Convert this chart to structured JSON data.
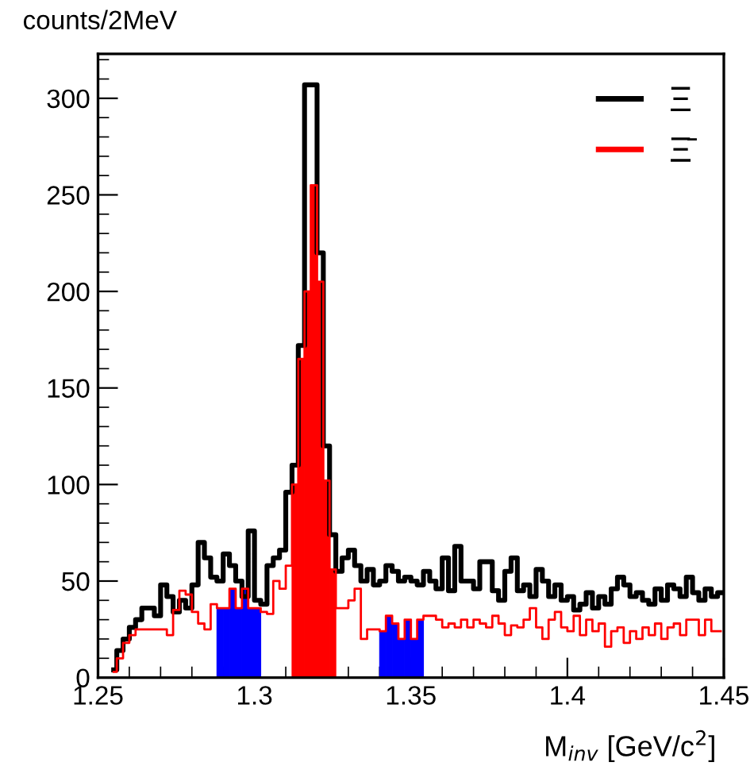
{
  "chart_data": {
    "type": "histogram",
    "ylabel": "counts/2MeV",
    "xlabel": "M$_{inv}$ [GeV/c$^{2}$]",
    "bins": [
      1.25,
      1.252,
      1.254,
      1.256,
      1.258,
      1.26,
      1.262,
      1.264,
      1.266,
      1.268,
      1.27,
      1.272,
      1.274,
      1.276,
      1.278,
      1.28,
      1.282,
      1.284,
      1.286,
      1.288,
      1.29,
      1.292,
      1.294,
      1.296,
      1.298,
      1.3,
      1.302,
      1.304,
      1.306,
      1.308,
      1.31,
      1.312,
      1.314,
      1.316,
      1.318,
      1.32,
      1.322,
      1.324,
      1.326,
      1.328,
      1.33,
      1.332,
      1.334,
      1.336,
      1.338,
      1.34,
      1.342,
      1.344,
      1.346,
      1.348,
      1.35,
      1.352,
      1.354,
      1.356,
      1.358,
      1.36,
      1.362,
      1.364,
      1.366,
      1.368,
      1.37,
      1.372,
      1.374,
      1.376,
      1.378,
      1.38,
      1.382,
      1.384,
      1.386,
      1.388,
      1.39,
      1.392,
      1.394,
      1.396,
      1.398,
      1.4,
      1.402,
      1.404,
      1.406,
      1.408,
      1.41,
      1.412,
      1.414,
      1.416,
      1.418,
      1.42,
      1.422,
      1.424,
      1.426,
      1.428,
      1.43,
      1.432,
      1.434,
      1.436,
      1.438,
      1.44,
      1.442,
      1.444,
      1.446,
      1.448,
      1.45
    ],
    "series": [
      {
        "name": "Ξ",
        "type": "step",
        "color": "#000000",
        "x": [
          1.255,
          1.257,
          1.259,
          1.261,
          1.263,
          1.265,
          1.267,
          1.269,
          1.271,
          1.273,
          1.275,
          1.277,
          1.279,
          1.281,
          1.283,
          1.285,
          1.287,
          1.289,
          1.291,
          1.293,
          1.295,
          1.297,
          1.299,
          1.301,
          1.303,
          1.305,
          1.307,
          1.309,
          1.311,
          1.313,
          1.315,
          1.317,
          1.319,
          1.321,
          1.323,
          1.325,
          1.327,
          1.329,
          1.331,
          1.333,
          1.335,
          1.337,
          1.339,
          1.341,
          1.343,
          1.345,
          1.347,
          1.349,
          1.351,
          1.353,
          1.355,
          1.357,
          1.359,
          1.361,
          1.363,
          1.365,
          1.367,
          1.369,
          1.371,
          1.373,
          1.375,
          1.377,
          1.379,
          1.381,
          1.383,
          1.385,
          1.387,
          1.389,
          1.391,
          1.393,
          1.395,
          1.397,
          1.399,
          1.401,
          1.403,
          1.405,
          1.407,
          1.409,
          1.411,
          1.413,
          1.415,
          1.417,
          1.419,
          1.421,
          1.423,
          1.425,
          1.427,
          1.429,
          1.431,
          1.433,
          1.435,
          1.437,
          1.439,
          1.441,
          1.443,
          1.445,
          1.447,
          1.449
        ],
        "values": [
          4,
          14,
          20,
          26,
          30,
          36,
          36,
          32,
          48,
          42,
          34,
          40,
          36,
          48,
          70,
          62,
          52,
          50,
          64,
          58,
          50,
          42,
          76,
          40,
          38,
          58,
          62,
          66,
          96,
          110,
          172,
          307,
          307,
          220,
          120,
          74,
          55,
          62,
          66,
          58,
          50,
          56,
          48,
          50,
          58,
          55,
          50,
          52,
          50,
          48,
          55,
          50,
          46,
          62,
          45,
          68,
          50,
          50,
          46,
          60,
          60,
          45,
          40,
          55,
          62,
          45,
          48,
          42,
          56,
          50,
          42,
          48,
          40,
          42,
          35,
          38,
          44,
          36,
          42,
          38,
          46,
          52,
          48,
          42,
          44,
          40,
          38,
          46,
          40,
          48,
          46,
          42,
          52,
          44,
          40,
          46,
          42,
          44
        ]
      },
      {
        "name": "Ξ̄",
        "type": "step",
        "color": "#ff0000",
        "x": [
          1.255,
          1.257,
          1.259,
          1.261,
          1.263,
          1.265,
          1.267,
          1.269,
          1.271,
          1.273,
          1.275,
          1.277,
          1.279,
          1.281,
          1.283,
          1.285,
          1.287,
          1.289,
          1.291,
          1.293,
          1.295,
          1.297,
          1.299,
          1.301,
          1.303,
          1.305,
          1.307,
          1.309,
          1.311,
          1.313,
          1.315,
          1.317,
          1.319,
          1.321,
          1.323,
          1.325,
          1.327,
          1.329,
          1.331,
          1.333,
          1.335,
          1.337,
          1.339,
          1.341,
          1.343,
          1.345,
          1.347,
          1.349,
          1.351,
          1.353,
          1.355,
          1.357,
          1.359,
          1.361,
          1.363,
          1.365,
          1.367,
          1.369,
          1.371,
          1.373,
          1.375,
          1.377,
          1.379,
          1.381,
          1.383,
          1.385,
          1.387,
          1.389,
          1.391,
          1.393,
          1.395,
          1.397,
          1.399,
          1.401,
          1.403,
          1.405,
          1.407,
          1.409,
          1.411,
          1.413,
          1.415,
          1.417,
          1.419,
          1.421,
          1.423,
          1.425,
          1.427,
          1.429,
          1.431,
          1.433,
          1.435,
          1.437,
          1.439,
          1.441,
          1.443,
          1.445,
          1.447,
          1.449
        ],
        "values": [
          3,
          10,
          18,
          22,
          25,
          25,
          25,
          25,
          25,
          22,
          35,
          45,
          43,
          34,
          28,
          25,
          38,
          36,
          36,
          46,
          36,
          46,
          36,
          36,
          34,
          33,
          50,
          46,
          58,
          100,
          165,
          200,
          255,
          205,
          102,
          56,
          36,
          36,
          40,
          46,
          20,
          25,
          25,
          24,
          32,
          28,
          20,
          30,
          20,
          30,
          32,
          32,
          30,
          26,
          28,
          26,
          30,
          26,
          30,
          28,
          26,
          32,
          28,
          22,
          27,
          26,
          30,
          36,
          26,
          20,
          30,
          34,
          26,
          24,
          32,
          22,
          30,
          24,
          28,
          16,
          24,
          26,
          18,
          24,
          20,
          26,
          22,
          28,
          20,
          26,
          28,
          22,
          30,
          30,
          22,
          30,
          24,
          24
        ]
      },
      {
        "color": "#0000ff",
        "values": [
          null,
          null,
          null,
          null,
          null,
          null,
          null,
          null,
          null,
          null,
          null,
          null,
          null,
          null,
          null,
          null,
          null,
          null,
          null,
          36,
          36,
          46,
          36,
          46,
          36,
          36,
          null,
          null,
          null,
          null,
          null,
          null,
          null,
          null,
          null,
          null,
          null,
          null,
          null,
          null,
          null,
          null,
          null,
          null,
          null,
          24,
          32,
          28,
          20,
          30,
          20,
          30,
          null,
          null,
          null,
          null,
          null,
          null,
          null,
          null,
          null,
          null,
          null,
          null,
          null,
          null,
          null,
          null,
          null,
          null,
          null,
          null,
          null,
          null,
          null,
          null,
          null,
          null,
          null,
          null,
          null,
          null,
          null,
          null,
          null,
          null,
          null,
          null,
          null,
          null,
          null,
          null,
          null,
          null,
          null,
          null,
          null,
          null,
          null,
          null
        ]
      },
      {
        "color": "#ff0000",
        "values": [
          null,
          null,
          null,
          null,
          null,
          null,
          null,
          null,
          null,
          null,
          null,
          null,
          null,
          null,
          null,
          null,
          null,
          null,
          null,
          null,
          null,
          null,
          null,
          null,
          null,
          null,
          null,
          null,
          null,
          null,
          null,
          100,
          165,
          200,
          255,
          205,
          102,
          56,
          null,
          null,
          null,
          null,
          null,
          null,
          null,
          null,
          null,
          null,
          null,
          null,
          null,
          null,
          null,
          null,
          null,
          null,
          null,
          null,
          null,
          null,
          null,
          null,
          null,
          null,
          null,
          null,
          null,
          null,
          null,
          null,
          null,
          null,
          null,
          null,
          null,
          null,
          null,
          null,
          null,
          null,
          null,
          null,
          null,
          null,
          null,
          null,
          null,
          null,
          null,
          null,
          null,
          null,
          null,
          null,
          null,
          null,
          null,
          null,
          null,
          null
        ]
      }
    ],
    "xlim": [
      1.25,
      1.45
    ],
    "ylim": [
      0,
      323
    ],
    "xticks": [
      1.25,
      1.3,
      1.35,
      1.4,
      1.45
    ],
    "yticks": [
      0,
      50,
      100,
      150,
      200,
      250,
      300
    ],
    "legend": "top right",
    "grid": false
  }
}
